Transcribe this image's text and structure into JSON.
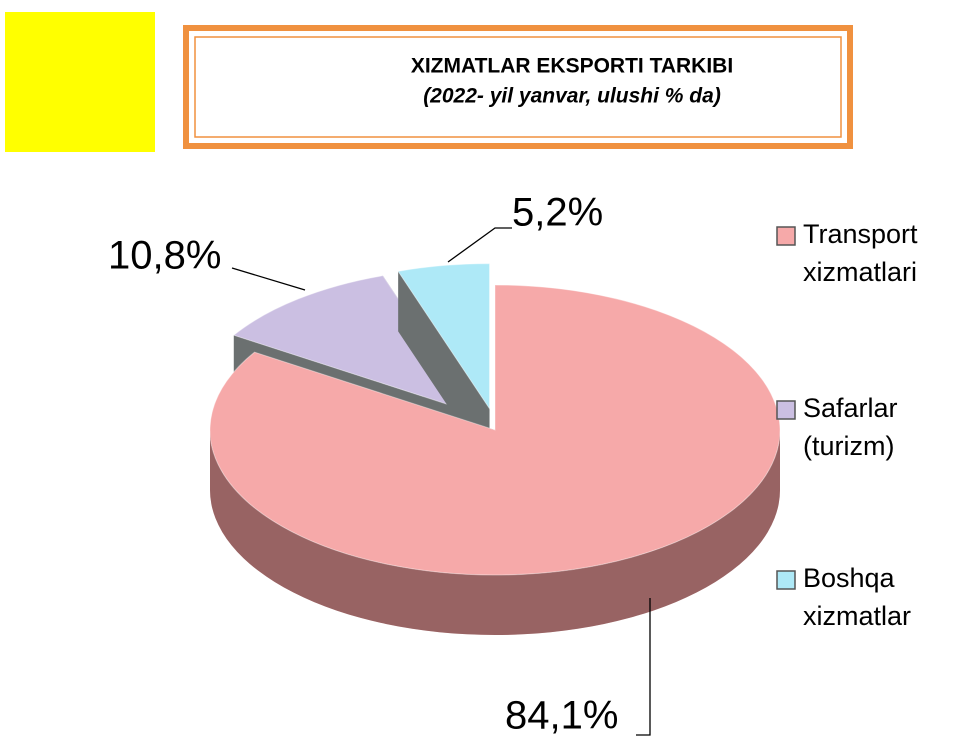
{
  "chart_data": {
    "type": "pie",
    "title": "XIZMATLAR EKSPORTI TARKIBI",
    "subtitle": "(2022- yil yanvar, ulushi % da)",
    "categories": [
      "Transport xizmatlari",
      "Safarlar (turizm)",
      "Boshqa xizmatlar"
    ],
    "values": [
      84.1,
      10.8,
      5.2
    ],
    "value_labels": [
      "84,1%",
      "10,8%",
      "5,2%"
    ],
    "colors": [
      "#f6a9a9",
      "#cbbfe2",
      "#aee9f7"
    ],
    "legend": "right"
  }
}
